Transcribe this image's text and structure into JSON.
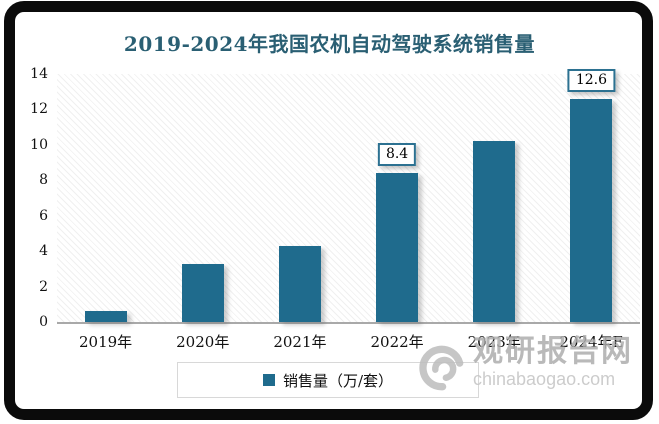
{
  "title": "2019-2024年我国农机自动驾驶系统销售量",
  "chart_data": {
    "type": "bar",
    "title": "2019-2024年我国农机自动驾驶系统销售量",
    "categories": [
      "2019年",
      "2020年",
      "2021年",
      "2022年",
      "2023年",
      "2024年E"
    ],
    "series": [
      {
        "name": "销售量（万/套）",
        "values": [
          0.6,
          3.3,
          4.3,
          8.4,
          10.2,
          12.6
        ]
      }
    ],
    "shown_data_labels": [
      {
        "index": 3,
        "text": "8.4"
      },
      {
        "index": 5,
        "text": "12.6"
      }
    ],
    "xlabel": "",
    "ylabel": "",
    "ylim": [
      0,
      14
    ],
    "yticks": [
      "0",
      "2",
      "4",
      "6",
      "8",
      "10",
      "12",
      "14"
    ],
    "grid": false,
    "legend_position": "bottom",
    "bar_color": "#1F6B8D",
    "title_color": "#2A5F73",
    "axis_line_color": "#A9A9A9",
    "data_label_border_color": "#2C7191"
  },
  "legend": {
    "label": "销售量（万/套）"
  },
  "watermark": {
    "logo": "swirl-icon",
    "site_name": "观研报告网",
    "site_url": "chinabaogao.com"
  }
}
